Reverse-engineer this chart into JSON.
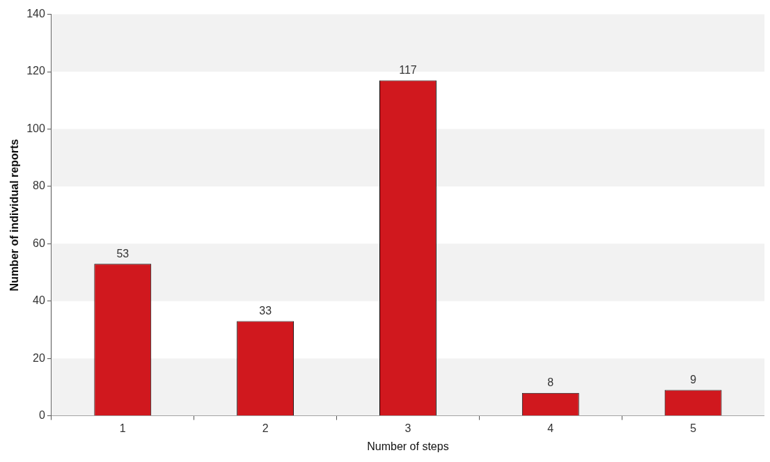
{
  "chart_data": {
    "type": "bar",
    "xlabel": "Number of steps",
    "ylabel": "Number of individual reports",
    "categories": [
      "1",
      "2",
      "3",
      "4",
      "5"
    ],
    "values": [
      53,
      33,
      117,
      8,
      9
    ],
    "color": "#d0181e",
    "ylim": [
      0,
      140
    ],
    "yticks": [
      0,
      20,
      40,
      60,
      80,
      100,
      120,
      140
    ],
    "data_labels": true,
    "legend": false
  }
}
